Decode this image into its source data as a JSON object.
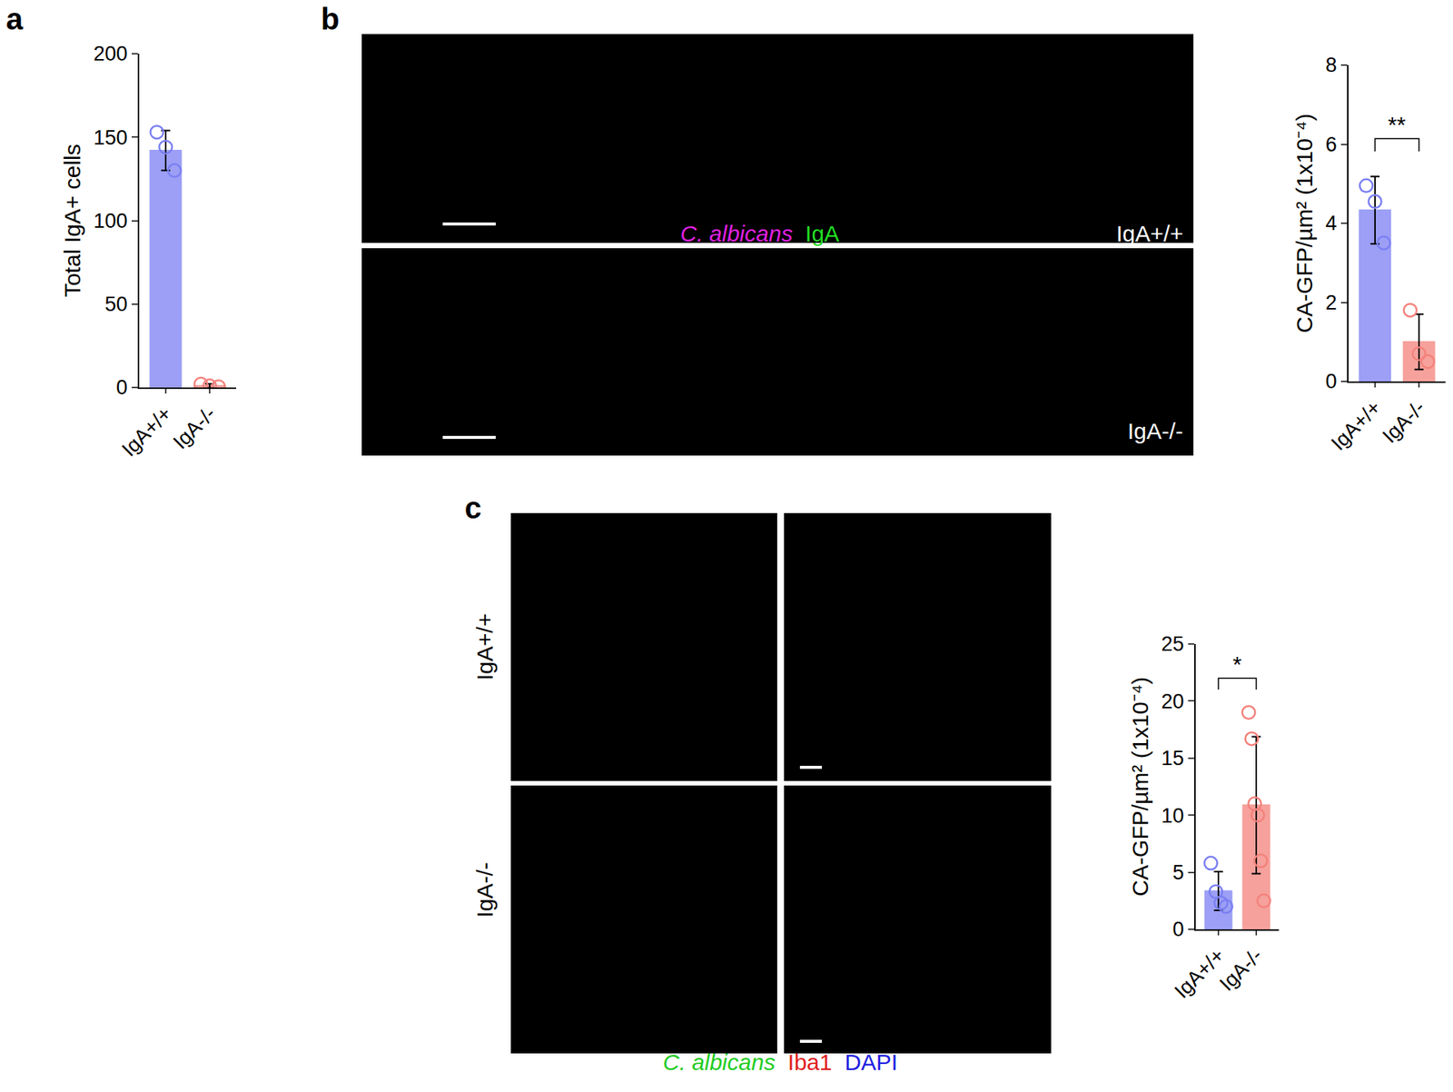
{
  "chart_data": [
    {
      "panel": "a",
      "type": "bar",
      "categories": [
        "IgA+/+",
        "IgA-/-"
      ],
      "y_label": "Total IgA+ cells",
      "values": [
        142,
        1
      ],
      "error": [
        12,
        1.2
      ],
      "points": [
        [
          153,
          144,
          130
        ],
        [
          2,
          1,
          0.5
        ]
      ],
      "colors": [
        "#7b80f2",
        "#f4827c"
      ],
      "ylim": [
        0,
        200
      ],
      "yticks": [
        0,
        50,
        100,
        150,
        200
      ]
    },
    {
      "panel": "b",
      "type": "bar",
      "categories": [
        "IgA+/+",
        "IgA-/-"
      ],
      "y_label": "CA-GFP/µm² (1x10⁻⁴)",
      "values": [
        4.33,
        1.0
      ],
      "error": [
        0.85,
        0.7
      ],
      "points": [
        [
          4.95,
          4.55,
          3.5
        ],
        [
          1.8,
          0.7,
          0.5
        ]
      ],
      "colors": [
        "#7b80f2",
        "#f4827c"
      ],
      "ylim": [
        0,
        8
      ],
      "yticks": [
        0,
        2,
        4,
        6,
        8
      ],
      "significance": "**"
    },
    {
      "panel": "c",
      "type": "bar",
      "categories": [
        "IgA+/+",
        "IgA-/-"
      ],
      "y_label": "CA-GFP/µm² (1x10⁻⁴)",
      "values": [
        3.35,
        10.87
      ],
      "error": [
        1.7,
        6.0
      ],
      "points": [
        [
          5.8,
          3.3,
          2.3,
          2.0
        ],
        [
          19,
          16.7,
          11,
          10,
          6,
          2.5
        ]
      ],
      "colors": [
        "#7b80f2",
        "#f4827c"
      ],
      "ylim": [
        0,
        25
      ],
      "yticks": [
        0,
        5,
        10,
        15,
        20,
        25
      ],
      "significance": "*"
    }
  ],
  "image_panels": [
    {
      "panel": "b",
      "rows": [
        "IgA+/+",
        "IgA-/-"
      ],
      "stain_legend": [
        {
          "text": "C. albicans",
          "color": "#e020e0"
        },
        {
          "text": "IgA",
          "color": "#22dd22"
        }
      ]
    },
    {
      "panel": "c",
      "rows": [
        "IgA+/+",
        "IgA-/-"
      ],
      "stain_legend": [
        {
          "text": "C. albicans",
          "color": "#22cc22"
        },
        {
          "text": "Iba1",
          "color": "#e02020"
        },
        {
          "text": "DAPI",
          "color": "#2020e0"
        }
      ]
    }
  ]
}
